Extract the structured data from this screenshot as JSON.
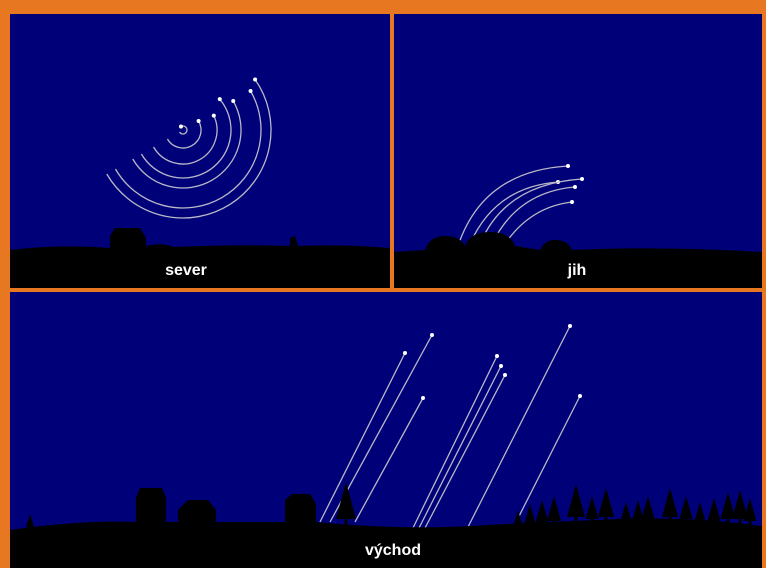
{
  "panels": [
    {
      "label": "sever"
    },
    {
      "label": "jih"
    },
    {
      "label": "východ"
    }
  ]
}
